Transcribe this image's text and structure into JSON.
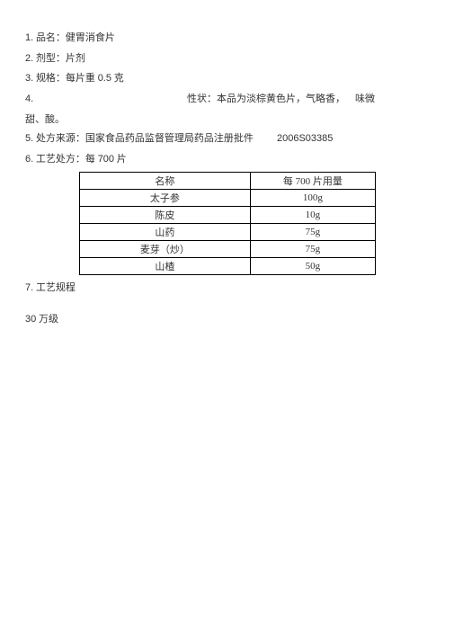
{
  "lines": {
    "l1_num": "1.",
    "l1_text": " 品名：健胃消食片",
    "l2_num": "2.",
    "l2_text": " 剂型：片剂",
    "l3_num": "3.",
    "l3_text_a": " 规格：每片重 ",
    "l3_val": "0.5",
    "l3_text_b": " 克",
    "l4_num": "4.",
    "l4_right": "性状：本品为淡棕黄色片，气略香， 味微",
    "l4b": "甜、酸。",
    "l5_num": "5.",
    "l5_text": " 处方来源：国家食品药品监督管理局药品注册批件",
    "l5_code": "2006S03385",
    "l6_num": "6.",
    "l6_text_a": " 工艺处方：每 ",
    "l6_val": "700",
    "l6_text_b": " 片",
    "l7_num": "7.",
    "l7_text": " 工艺规程",
    "bottom_num": "30",
    "bottom_text": " 万级"
  },
  "table": {
    "header": {
      "c1": "名称",
      "c2": "每 700 片用量"
    },
    "rows": [
      {
        "c1": "太子参",
        "c2": "100g"
      },
      {
        "c1": "陈皮",
        "c2": "10g"
      },
      {
        "c1": "山药",
        "c2": "75g"
      },
      {
        "c1": "麦芽（炒）",
        "c2": "75g"
      },
      {
        "c1": "山楂",
        "c2": "50g"
      }
    ]
  }
}
